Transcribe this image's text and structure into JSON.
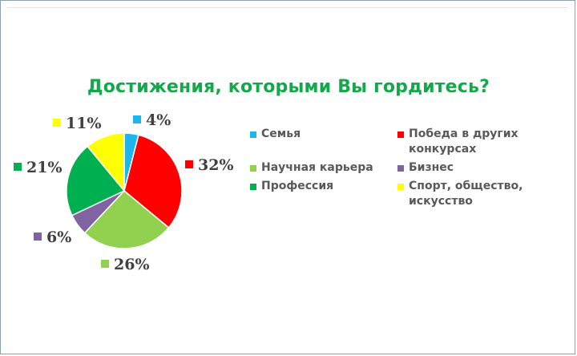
{
  "chart_data": {
    "type": "pie",
    "title": "Достижения, которыми Вы гордитесь?",
    "slices": [
      {
        "name": "Семья",
        "value": 4,
        "label": "4%",
        "color": "#1fb5ec"
      },
      {
        "name": "Победа в других конкурсах",
        "value": 32,
        "label": "32%",
        "color": "#ff0000"
      },
      {
        "name": "Научная карьера",
        "value": 26,
        "label": "26%",
        "color": "#92d050"
      },
      {
        "name": "Бизнес",
        "value": 6,
        "label": "6%",
        "color": "#8064a2"
      },
      {
        "name": "Профессия",
        "value": 21,
        "label": "21%",
        "color": "#00b050"
      },
      {
        "name": "Спорт, общество, искусство",
        "value": 11,
        "label": "11%",
        "color": "#ffff00"
      }
    ],
    "legend": {
      "placement": "right",
      "rows": [
        [
          {
            "label": "Семья",
            "color": "#1fb5ec"
          },
          {
            "label": "Победа в других конкурсах",
            "color": "#ff0000"
          }
        ],
        [
          {
            "label": "Научная карьера",
            "color": "#92d050"
          },
          {
            "label": "Бизнес",
            "color": "#8064a2"
          }
        ],
        [
          {
            "label": "Профессия",
            "color": "#00b050"
          },
          {
            "label": "Спорт, общество, искусство",
            "color": "#ffff00"
          }
        ]
      ]
    }
  }
}
